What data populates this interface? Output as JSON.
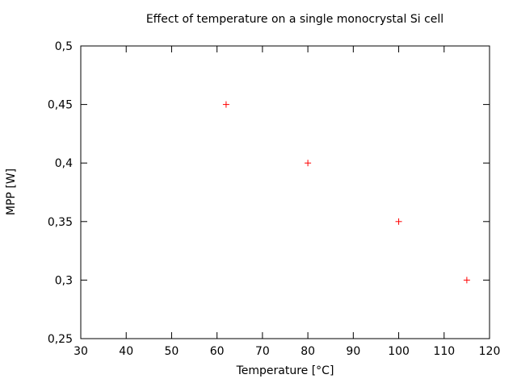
{
  "chart_data": {
    "type": "scatter",
    "title": "Effect of temperature on a single monocrystal Si cell",
    "xlabel": "Temperature [°C]",
    "ylabel": "MPP [W]",
    "xlim": [
      30,
      120
    ],
    "ylim": [
      0.25,
      0.5
    ],
    "xticks": [
      30,
      40,
      50,
      60,
      70,
      80,
      90,
      100,
      110,
      120
    ],
    "xtick_labels": [
      "30",
      "40",
      "50",
      "60",
      "70",
      "80",
      "90",
      "100",
      "110",
      "120"
    ],
    "yticks": [
      0.25,
      0.3,
      0.35,
      0.4,
      0.45,
      0.5
    ],
    "ytick_labels": [
      "0,25",
      "0,3",
      "0,35",
      "0,4",
      "0,45",
      "0,5"
    ],
    "grid": false,
    "legend": "none",
    "marker": "plus",
    "marker_color": "#ff0000",
    "series": [
      {
        "name": "MPP",
        "points": [
          {
            "x": 62,
            "y": 0.45
          },
          {
            "x": 80,
            "y": 0.4
          },
          {
            "x": 100,
            "y": 0.35
          },
          {
            "x": 115,
            "y": 0.3
          }
        ]
      }
    ]
  }
}
